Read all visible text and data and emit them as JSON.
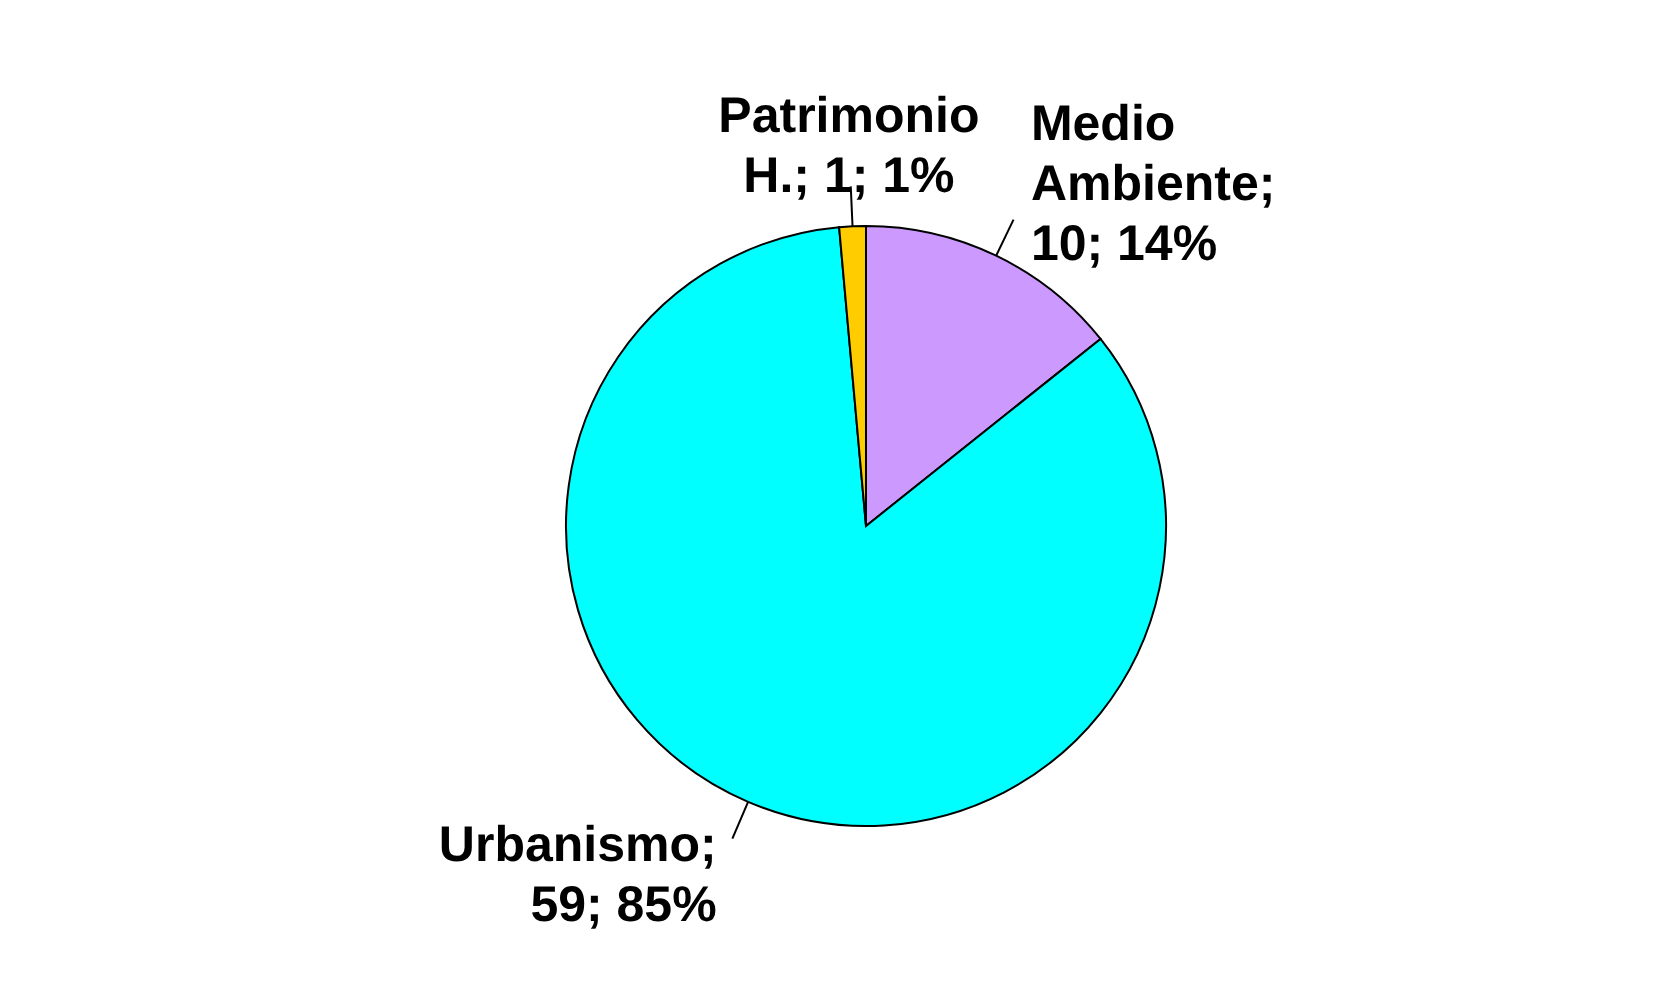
{
  "chart_data": {
    "type": "pie",
    "categories": [
      "Medio Ambiente",
      "Urbanismo",
      "Patrimonio H."
    ],
    "values": [
      10,
      59,
      1
    ],
    "colors": [
      "#cc99ff",
      "#00ffff",
      "#ffcc00"
    ],
    "value_labels": [
      "; 10; 14%",
      "; 59; 85%",
      "; 1; 1%"
    ],
    "legend": false
  }
}
